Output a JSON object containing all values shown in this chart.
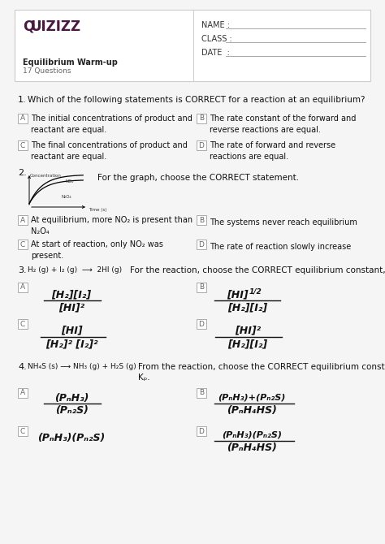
{
  "bg_color": "#f5f5f5",
  "box_bg": "#ffffff",
  "border_color": "#cccccc",
  "quizizz_color": "#4a1942",
  "text_color": "#111111",
  "gray_color": "#666666",
  "title": "Quizizz",
  "subtitle": "Equilibrium Warm-up",
  "subtitle2": "17 Questions",
  "name_label": "NAME :",
  "class_label": "CLASS :",
  "date_label": "DATE  :",
  "q1_text": "Which of the following statements is CORRECT for a reaction at an equilibrium?",
  "q1_a": "The initial concentrations of product and\nreactant are equal.",
  "q1_b": "The rate constant of the forward and\nreverse reactions are equal.",
  "q1_c": "The final concentrations of product and\nreactant are equal.",
  "q1_d": "The rate of forward and reverse\nreactions are equal.",
  "q2_text": "For the graph, choose the CORRECT statement.",
  "q2_a": "At equilibrium, more NO₂ is present than\nN₂O₄",
  "q2_b": "The systems never reach equilibrium",
  "q2_c": "At start of reaction, only NO₂ was\npresent.",
  "q2_d": "The rate of reaction slowly increase",
  "q3_reaction": "H₂ (g) + I₂ (g)  ⟶  2HI (g)",
  "q3_text": "For the reaction, choose the CORRECT equilibrium constant, Kⲟ.",
  "q4_reaction": "NH₄S (s) ⟶ NH₃ (g) + H₂S (g)",
  "q4_text": "From the reaction, choose the CORRECT equilibrium constant,\nKₚ."
}
